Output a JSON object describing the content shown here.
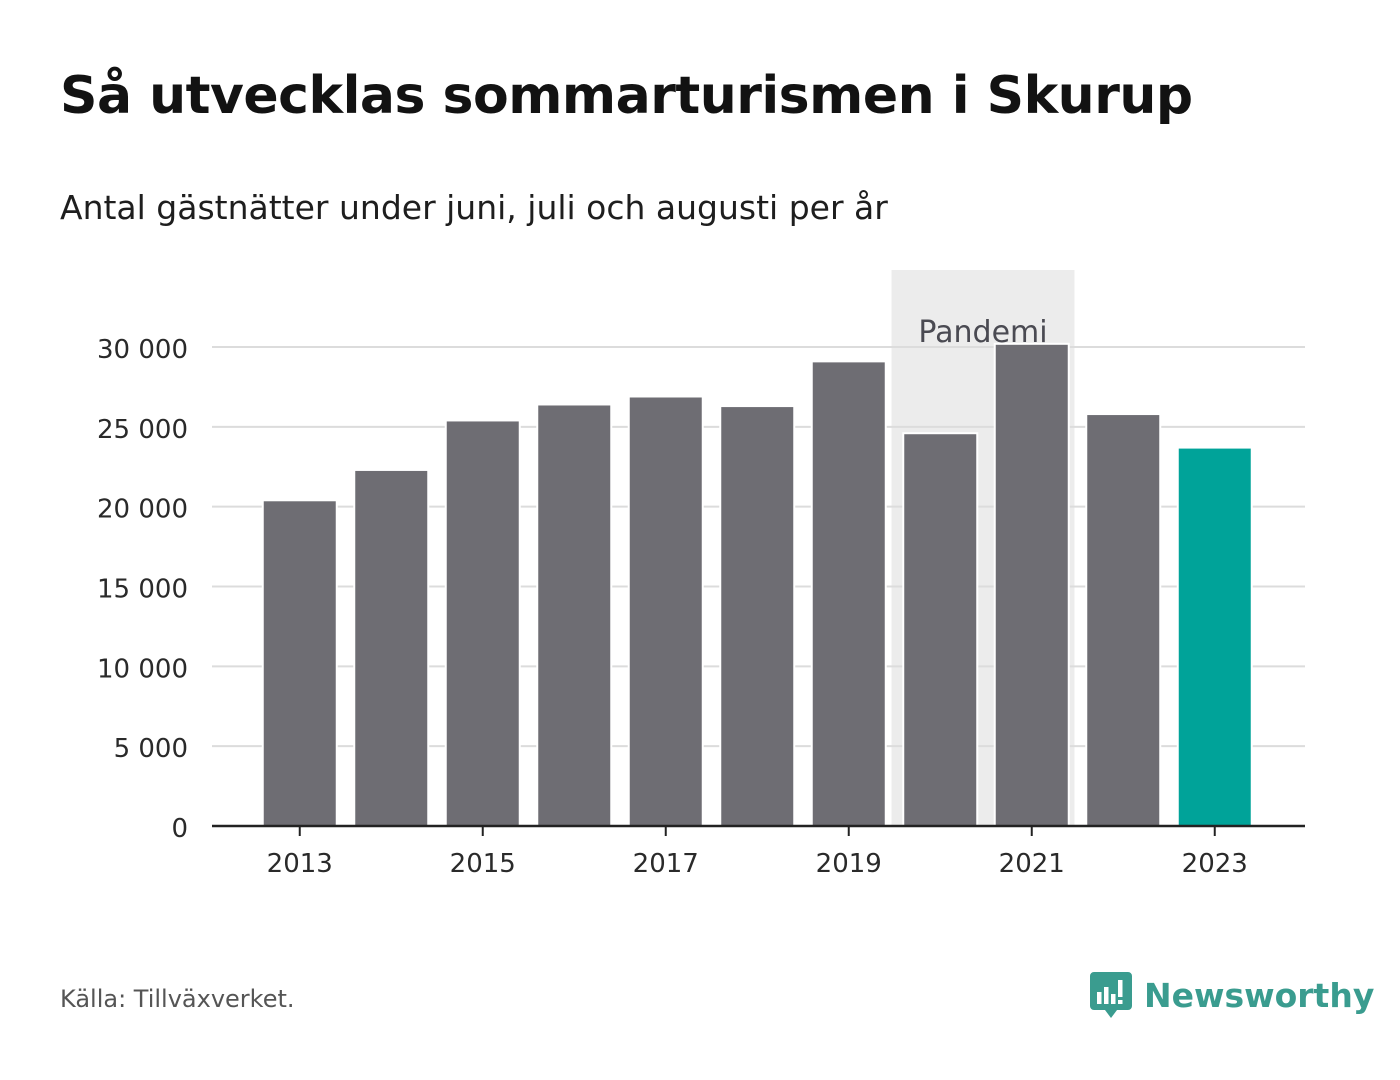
{
  "title": "Så utvecklas sommarturismen i Skurup",
  "subtitle": "Antal gästnätter under juni, juli och augusti per år",
  "source": "Källa: Tillväxverket.",
  "brand": {
    "name": "Newsworthy",
    "icon": "newsworthy-logo-icon",
    "color": "#3a9c8f"
  },
  "colors": {
    "bar": "#6e6d73",
    "highlight": "#00a399",
    "band": "#ececec",
    "grid": "#dcdcdc",
    "axis": "#222222"
  },
  "chart_data": {
    "type": "bar",
    "categories": [
      "2013",
      "2014",
      "2015",
      "2016",
      "2017",
      "2018",
      "2019",
      "2020",
      "2021",
      "2022",
      "2023"
    ],
    "values": [
      20400,
      22300,
      25400,
      26400,
      26900,
      26300,
      29100,
      24600,
      30200,
      25800,
      23700
    ],
    "highlight_index": 10,
    "x_tick_labels": [
      "2013",
      "2015",
      "2017",
      "2019",
      "2021",
      "2023"
    ],
    "y_ticks": [
      0,
      5000,
      10000,
      15000,
      20000,
      25000,
      30000
    ],
    "y_tick_labels": [
      "0",
      "5 000",
      "10 000",
      "15 000",
      "20 000",
      "25 000",
      "30 000"
    ],
    "ylim": [
      0,
      30000
    ],
    "grid": true,
    "annotation": {
      "label": "Pandemi",
      "from": "2020",
      "to": "2021"
    }
  }
}
